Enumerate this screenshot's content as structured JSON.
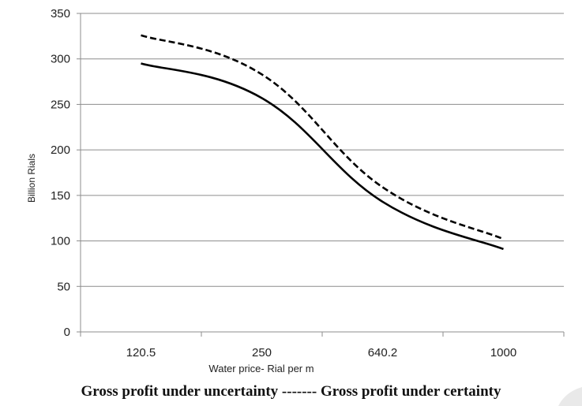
{
  "caption": "Gross profit under uncertainty ------- Gross profit under certainty",
  "chart_data": {
    "type": "line",
    "title": "",
    "xlabel": "Water price- Rial per m",
    "ylabel": "Billion Rials",
    "categories": [
      "120.5",
      "250",
      "640.2",
      "1000"
    ],
    "ylim": [
      0,
      350
    ],
    "yticks": [
      "0",
      "50",
      "100",
      "150",
      "200",
      "250",
      "300",
      "350"
    ],
    "grid": "horizontal",
    "series": [
      {
        "name": "",
        "style": "solid",
        "values": [
          295,
          257,
          143,
          91
        ]
      },
      {
        "name": "",
        "style": "dashed",
        "values": [
          326,
          283,
          159,
          102
        ]
      }
    ]
  },
  "colors": {
    "line": "#000000",
    "grid": "#8c8c8c",
    "axis": "#8c8c8c"
  }
}
